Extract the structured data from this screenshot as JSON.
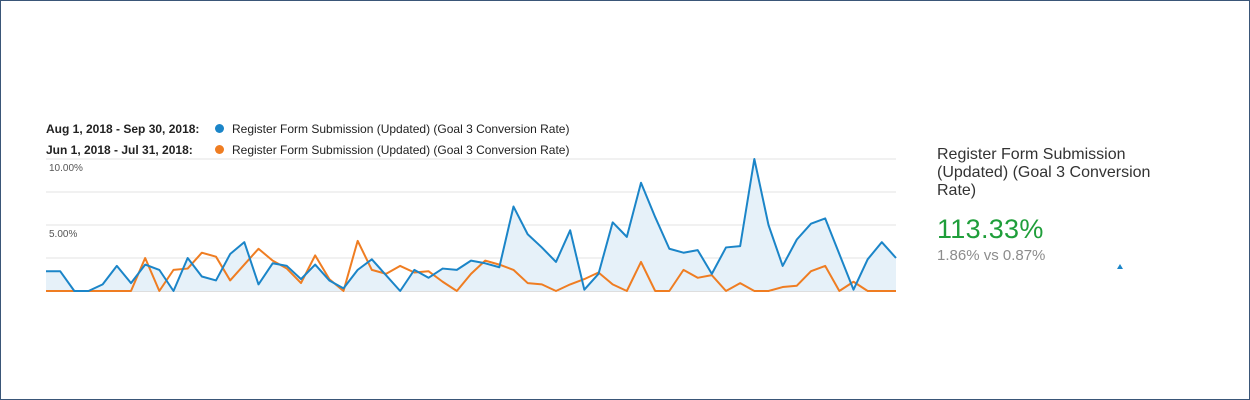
{
  "colors": {
    "primary": "#1b85c8",
    "comparison": "#ef7d22",
    "fill": "#e6f1f9",
    "positive": "#1f9e3a",
    "grid": "#e3e3e3"
  },
  "legend": {
    "rows": [
      {
        "date_range": "Aug 1, 2018 - Sep 30, 2018:",
        "metric": "Register Form Submission (Updated) (Goal 3 Conversion Rate)"
      },
      {
        "date_range": "Jun 1, 2018 - Jul 31, 2018:",
        "metric": "Register Form Submission (Updated) (Goal 3 Conversion Rate)"
      }
    ]
  },
  "chart_data": {
    "type": "line",
    "y_ticks": [
      "10.00%",
      "5.00%"
    ],
    "ylim": [
      0,
      10
    ],
    "grid": true,
    "legend_position": "top-left",
    "x": [
      1,
      2,
      3,
      4,
      5,
      6,
      7,
      8,
      9,
      10,
      11,
      12,
      13,
      14,
      15,
      16,
      17,
      18,
      19,
      20,
      21,
      22,
      23,
      24,
      25,
      26,
      27,
      28,
      29,
      30,
      31,
      32,
      33,
      34,
      35,
      36,
      37,
      38,
      39,
      40,
      41,
      42,
      43,
      44,
      45,
      46,
      47,
      48,
      49,
      50,
      51,
      52,
      53,
      54,
      55,
      56,
      57,
      58,
      59,
      60,
      61
    ],
    "series": [
      {
        "name": "Aug 1, 2018 - Sep 30, 2018",
        "color": "#1b85c8",
        "values": [
          1.5,
          1.5,
          0,
          0,
          0.5,
          1.9,
          0.6,
          2.0,
          1.6,
          0,
          2.5,
          1.1,
          0.8,
          2.8,
          3.7,
          0.5,
          2.1,
          1.9,
          0.9,
          2.0,
          0.8,
          0.2,
          1.6,
          2.4,
          1.2,
          0,
          1.6,
          1.0,
          1.7,
          1.6,
          2.3,
          2.1,
          1.8,
          6.4,
          4.3,
          3.3,
          2.2,
          4.6,
          0.1,
          1.3,
          5.2,
          4.1,
          8.2,
          5.6,
          3.2,
          2.9,
          3.1,
          1.3,
          3.3,
          3.4,
          10.0,
          5.0,
          1.9,
          3.9,
          5.1,
          5.5,
          2.8,
          0.1,
          2.4,
          3.7,
          2.5
        ]
      },
      {
        "name": "Jun 1, 2018 - Jul 31, 2018",
        "color": "#ef7d22",
        "values": [
          0,
          0,
          0,
          0,
          0,
          0,
          0,
          2.5,
          0,
          1.6,
          1.7,
          2.9,
          2.6,
          0.8,
          2.0,
          3.2,
          2.3,
          1.7,
          0.6,
          2.7,
          0.9,
          0,
          3.8,
          1.6,
          1.3,
          1.9,
          1.4,
          1.5,
          0.7,
          0,
          1.3,
          2.3,
          2.0,
          1.6,
          0.6,
          0.5,
          0,
          0.5,
          0.9,
          1.4,
          0.5,
          0,
          2.2,
          0,
          0,
          1.6,
          1.0,
          1.2,
          0,
          0.6,
          0,
          0,
          0.3,
          0.4,
          1.5,
          1.9,
          0,
          0.7,
          0,
          0,
          0
        ]
      }
    ]
  },
  "metric": {
    "name": "Register Form Submission (Updated) (Goal 3 Conversion Rate)",
    "change": "113.33%",
    "comparison": "1.86% vs 0.87%"
  }
}
